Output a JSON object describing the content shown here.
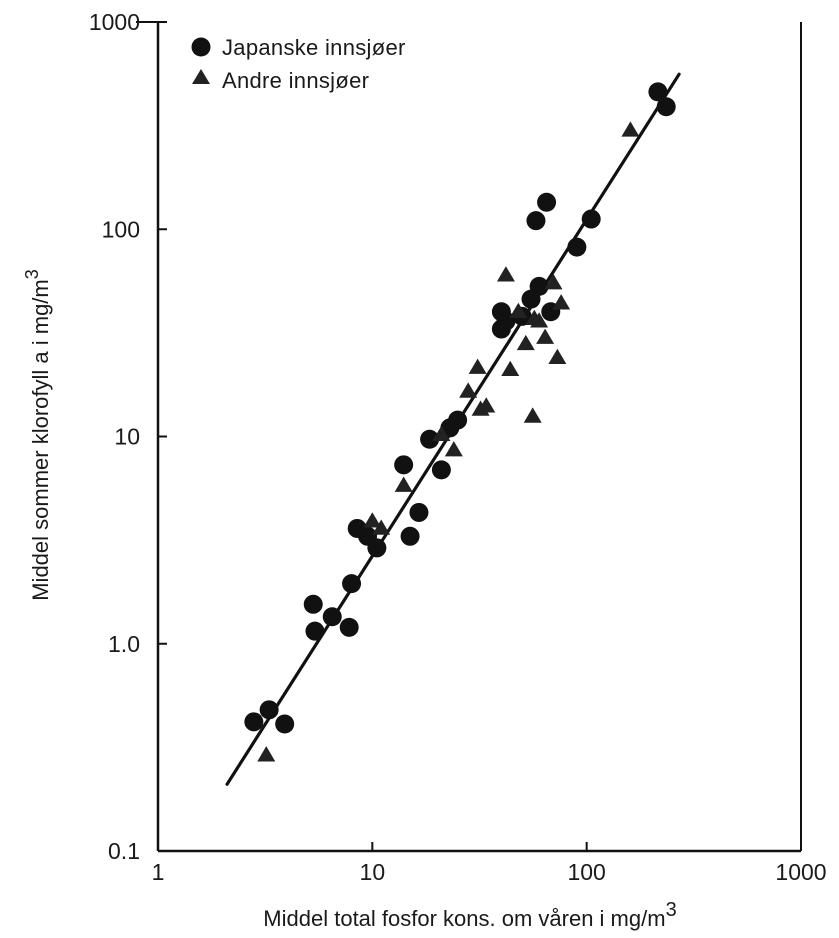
{
  "chart_data": {
    "type": "scatter",
    "title": "",
    "xlabel": "Middel total fosfor kons. om våren i mg/m",
    "xlabel_sup": "3",
    "ylabel": "Middel sommer klorofyll a i mg/m",
    "ylabel_sup": "3",
    "x_scale": "log",
    "y_scale": "log",
    "xlim": [
      1,
      1000
    ],
    "ylim": [
      0.1,
      1000
    ],
    "x_ticks": [
      1,
      10,
      100,
      1000
    ],
    "x_tick_labels": [
      "1",
      "10",
      "100",
      "1000"
    ],
    "y_ticks": [
      0.1,
      1,
      10,
      100,
      1000
    ],
    "y_tick_labels": [
      "0.1",
      "1.0",
      "10",
      "100",
      "1000"
    ],
    "grid": false,
    "legend_position": "top-left",
    "series": [
      {
        "name": "Japanske innsjøer",
        "marker": "circle",
        "points": [
          [
            2.8,
            0.42
          ],
          [
            3.3,
            0.48
          ],
          [
            3.9,
            0.41
          ],
          [
            5.3,
            1.55
          ],
          [
            5.4,
            1.15
          ],
          [
            6.5,
            1.35
          ],
          [
            7.8,
            1.2
          ],
          [
            8.0,
            1.95
          ],
          [
            8.5,
            3.6
          ],
          [
            9.5,
            3.3
          ],
          [
            10.5,
            2.9
          ],
          [
            14.0,
            7.3
          ],
          [
            15.0,
            3.3
          ],
          [
            16.5,
            4.3
          ],
          [
            18.5,
            9.7
          ],
          [
            21.0,
            6.9
          ],
          [
            23.0,
            11.0
          ],
          [
            25.0,
            12.0
          ],
          [
            40.0,
            40.0
          ],
          [
            40.0,
            33.0
          ],
          [
            42.0,
            36.0
          ],
          [
            50.0,
            38.0
          ],
          [
            55.0,
            46.0
          ],
          [
            58.0,
            110.0
          ],
          [
            60.0,
            53.0
          ],
          [
            65.0,
            135.0
          ],
          [
            68.0,
            40.0
          ],
          [
            90.0,
            82.0
          ],
          [
            105.0,
            112.0
          ],
          [
            215.0,
            460.0
          ],
          [
            235.0,
            390.0
          ]
        ]
      },
      {
        "name": "Andre innsjøer",
        "marker": "triangle",
        "points": [
          [
            3.2,
            0.29
          ],
          [
            10.0,
            3.9
          ],
          [
            11.0,
            3.6
          ],
          [
            14.0,
            5.8
          ],
          [
            21.0,
            10.2
          ],
          [
            24.0,
            8.6
          ],
          [
            28.0,
            16.5
          ],
          [
            31.0,
            21.5
          ],
          [
            32.0,
            13.5
          ],
          [
            34.0,
            14.0
          ],
          [
            42.0,
            60.0
          ],
          [
            44.0,
            21.0
          ],
          [
            48.0,
            40.0
          ],
          [
            52.0,
            28.0
          ],
          [
            56.0,
            12.5
          ],
          [
            57.0,
            37.0
          ],
          [
            60.0,
            36.0
          ],
          [
            64.0,
            30.0
          ],
          [
            70.0,
            55.0
          ],
          [
            73.0,
            24.0
          ],
          [
            76.0,
            44.0
          ],
          [
            160.0,
            300.0
          ]
        ]
      }
    ],
    "regression_line": {
      "x": [
        2.1,
        270.0
      ],
      "y": [
        0.21,
        560.0
      ]
    }
  }
}
